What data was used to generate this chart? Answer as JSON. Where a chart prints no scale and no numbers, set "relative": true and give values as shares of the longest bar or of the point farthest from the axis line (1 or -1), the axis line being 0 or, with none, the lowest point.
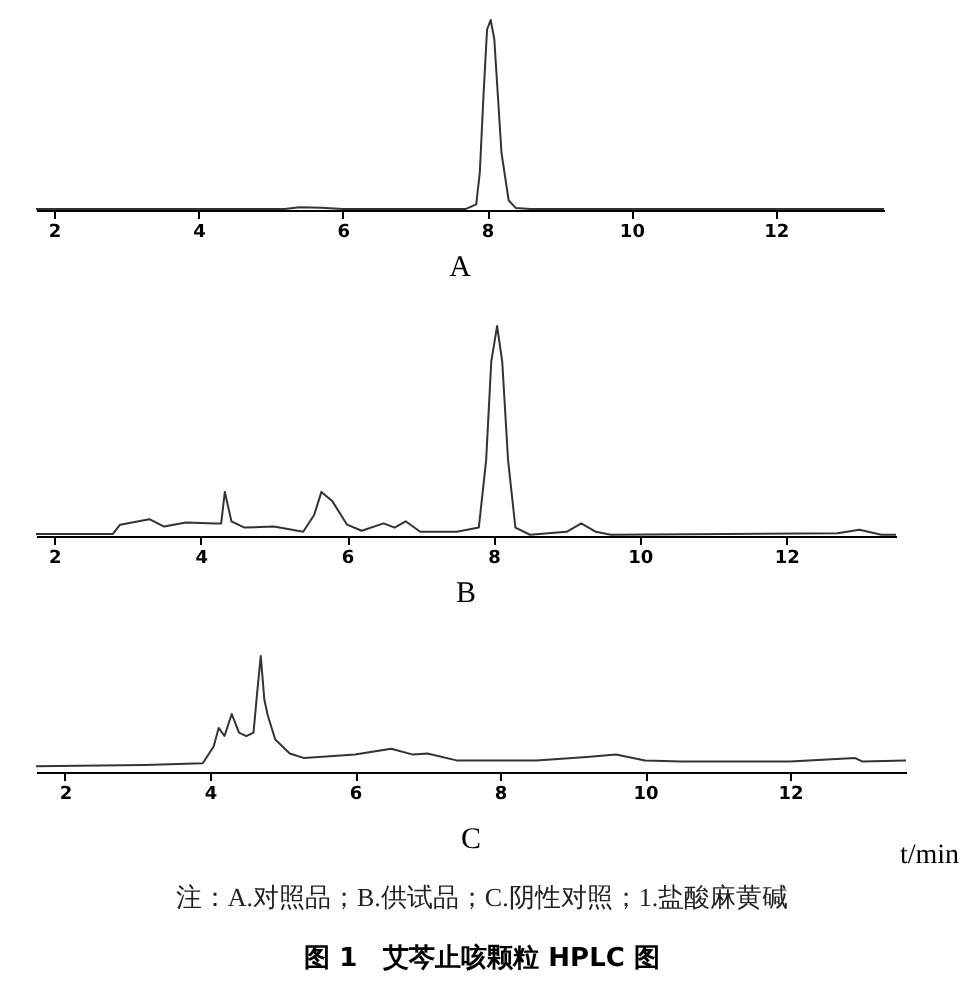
{
  "chart_data": [
    {
      "type": "line",
      "title": "A",
      "relative": true,
      "xlim": [
        1.75,
        13.5
      ],
      "xticks": [
        2,
        4,
        6,
        8,
        10,
        12
      ],
      "series": [
        {
          "color": "#333333",
          "x": [
            1.75,
            3.0,
            5.2,
            5.4,
            5.7,
            6.0,
            7.7,
            7.85,
            7.9,
            7.95,
            8.0,
            8.05,
            8.1,
            8.15,
            8.2,
            8.3,
            8.4,
            8.6,
            13.5
          ],
          "values": [
            0.005,
            0.005,
            0.005,
            0.015,
            0.012,
            0.005,
            0.005,
            0.03,
            0.2,
            0.6,
            0.95,
            1,
            0.9,
            0.6,
            0.3,
            0.05,
            0.01,
            0.005,
            0.005
          ]
        }
      ]
    },
    {
      "type": "line",
      "title": "B",
      "relative": true,
      "xlim": [
        1.75,
        13.5
      ],
      "xticks": [
        2,
        4,
        6,
        8,
        10,
        12
      ],
      "series": [
        {
          "color": "#333333",
          "x": [
            1.75,
            2.8,
            2.9,
            3.3,
            3.5,
            3.8,
            4.2,
            4.28,
            4.33,
            4.42,
            4.6,
            5.0,
            5.4,
            5.55,
            5.65,
            5.8,
            6.0,
            6.2,
            6.5,
            6.65,
            6.8,
            7.0,
            7.5,
            7.8,
            7.9,
            7.97,
            8.05,
            8.12,
            8.2,
            8.3,
            8.5,
            9.0,
            9.2,
            9.4,
            9.6,
            12.7,
            13.0,
            13.3,
            13.5
          ],
          "values": [
            0.01,
            0.01,
            0.054,
            0.08,
            0.045,
            0.064,
            0.06,
            0.06,
            0.21,
            0.07,
            0.04,
            0.045,
            0.02,
            0.1,
            0.21,
            0.165,
            0.054,
            0.025,
            0.06,
            0.04,
            0.07,
            0.02,
            0.02,
            0.04,
            0.36,
            0.83,
            1,
            0.83,
            0.36,
            0.04,
            0.006,
            0.02,
            0.06,
            0.02,
            0.006,
            0.013,
            0.03,
            0.006,
            0.006
          ]
        }
      ]
    },
    {
      "type": "line",
      "title": "C",
      "xlabel": "t/min",
      "relative": true,
      "xlim": [
        1.6,
        13.6
      ],
      "xticks": [
        2,
        4,
        6,
        8,
        10,
        12
      ],
      "series": [
        {
          "color": "#333333",
          "x": [
            1.6,
            3.1,
            3.9,
            4.05,
            4.12,
            4.2,
            4.3,
            4.4,
            4.5,
            4.6,
            4.65,
            4.7,
            4.75,
            4.8,
            4.9,
            5.1,
            5.3,
            6.0,
            6.5,
            6.8,
            7.0,
            7.4,
            8.5,
            9.2,
            9.6,
            10.0,
            10.5,
            12.0,
            12.9,
            13.0,
            13.6
          ],
          "values": [
            0.05,
            0.06,
            0.075,
            0.22,
            0.38,
            0.31,
            0.5,
            0.34,
            0.31,
            0.34,
            0.68,
            1,
            0.62,
            0.48,
            0.28,
            0.16,
            0.12,
            0.15,
            0.2,
            0.15,
            0.16,
            0.1,
            0.1,
            0.13,
            0.15,
            0.1,
            0.09,
            0.09,
            0.12,
            0.09,
            0.1
          ]
        }
      ],
      "annotations": [
        "注：A.对照品；B.供试品；C.阴性对照；1.盐酸麻黄碱",
        "图 1　艾芩止咳颗粒 HPLC 图"
      ]
    }
  ]
}
